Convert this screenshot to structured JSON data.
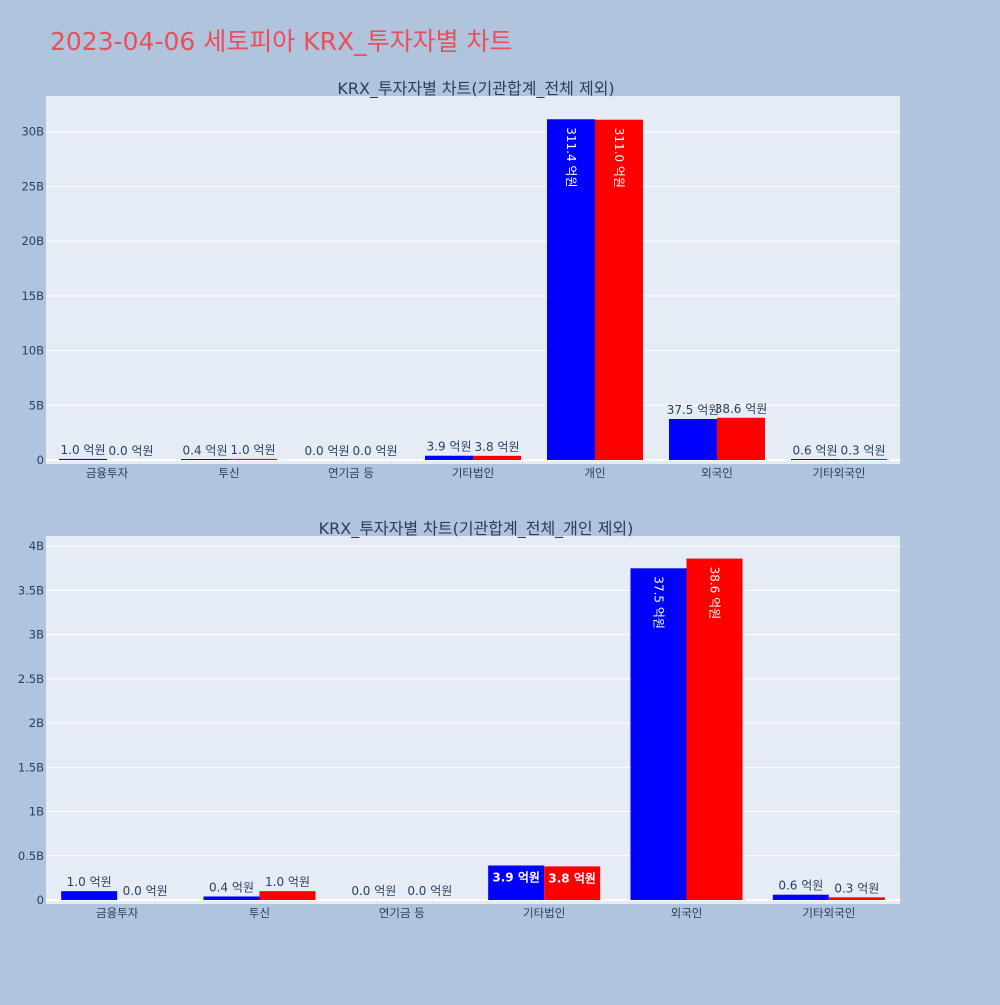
{
  "title": "2023-04-06 세토피아 KRX_투자자별 차트",
  "colors": {
    "paper": "#b0c4de",
    "plot_bg": "#e5ecf6",
    "series_a": "#0000ff",
    "series_b": "#ff0000",
    "title_color": "#e8505b",
    "text_color": "#2a3f5f"
  },
  "chart_data": [
    {
      "type": "bar",
      "title": "KRX_투자자별 차트(기관합계_전체 제외)",
      "categories": [
        "금융투자",
        "투신",
        "연기금 등",
        "기타법인",
        "개인",
        "외국인",
        "기타외국인"
      ],
      "series": [
        {
          "values": [
            100000000,
            40000000,
            0,
            390000000,
            31140000000,
            3750000000,
            60000000
          ],
          "labels": [
            "1.0 억원",
            "0.4 억원",
            "0.0 억원",
            "3.9 억원",
            "311.4 억원",
            "37.5 억원",
            "0.6 억원"
          ]
        },
        {
          "values": [
            0,
            100000000,
            0,
            380000000,
            31100000000,
            3860000000,
            30000000
          ],
          "labels": [
            "0.0 억원",
            "1.0 억원",
            "0.0 억원",
            "3.8 억원",
            "311.0 억원",
            "38.6 억원",
            "0.3 억원"
          ]
        }
      ],
      "ylim": [
        0,
        32900000000
      ],
      "yticks": [
        0,
        5000000000,
        10000000000,
        15000000000,
        20000000000,
        25000000000,
        30000000000
      ],
      "ytick_labels": [
        "0",
        "5B",
        "10B",
        "15B",
        "20B",
        "25B",
        "30B"
      ],
      "grid": true
    },
    {
      "type": "bar",
      "title": "KRX_투자자별 차트(기관합계_전체_개인 제외)",
      "categories": [
        "금융투자",
        "투신",
        "연기금 등",
        "기타법인",
        "외국인",
        "기타외국인"
      ],
      "series": [
        {
          "values": [
            100000000,
            40000000,
            0,
            390000000,
            3750000000,
            60000000
          ],
          "labels": [
            "1.0 억원",
            "0.4 억원",
            "0.0 억원",
            "3.9 억원",
            "37.5 억원",
            "0.6 억원"
          ]
        },
        {
          "values": [
            0,
            100000000,
            0,
            380000000,
            3860000000,
            30000000
          ],
          "labels": [
            "0.0 억원",
            "1.0 억원",
            "0.0 억원",
            "3.8 억원",
            "38.6 억원",
            "0.3 억원"
          ]
        }
      ],
      "ylim": [
        0,
        4070000000
      ],
      "yticks": [
        0,
        500000000,
        1000000000,
        1500000000,
        2000000000,
        2500000000,
        3000000000,
        3500000000,
        4000000000
      ],
      "ytick_labels": [
        "0",
        "0.5B",
        "1B",
        "1.5B",
        "2B",
        "2.5B",
        "3B",
        "3.5B",
        "4B"
      ],
      "grid": true
    }
  ]
}
